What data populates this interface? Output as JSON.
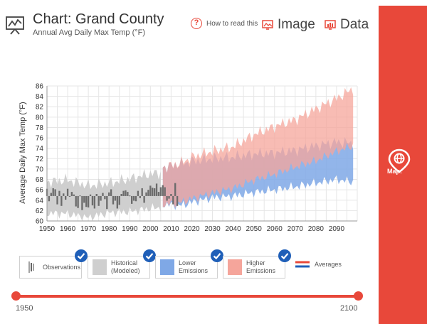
{
  "header": {
    "title": "Chart: Grand County",
    "subtitle": "Annual Avg Daily Max Temp (°F)",
    "help_label": "How to read this",
    "tab_image": "Image",
    "tab_data": "Data"
  },
  "sidebar": {
    "map_label": "Map:"
  },
  "legend": {
    "observations": "Observations",
    "historical_1": "Historical",
    "historical_2": "(Modeled)",
    "lower_1": "Lower",
    "lower_2": "Emissions",
    "higher_1": "Higher",
    "higher_2": "Emissions",
    "averages": "Averages"
  },
  "slider": {
    "start": "1950",
    "end": "2100"
  },
  "colors": {
    "accent": "#e8483a",
    "historical_band": "#cfcfcf",
    "lower_band": "#7fa8e6",
    "higher_band": "#f5a59b",
    "observations": "#6b6b6b",
    "check": "#1f5fb8"
  },
  "chart_data": {
    "type": "area",
    "ylabel": "Average Daily Max Temp (°F)",
    "xlabel": "",
    "xlim": [
      1950,
      2100
    ],
    "ylim": [
      60,
      86
    ],
    "x_ticks": [
      1950,
      1960,
      1970,
      1980,
      1990,
      2000,
      2010,
      2020,
      2030,
      2040,
      2050,
      2060,
      2070,
      2080,
      2090
    ],
    "y_ticks": [
      60,
      62,
      64,
      66,
      68,
      70,
      72,
      74,
      76,
      78,
      80,
      82,
      84,
      86
    ],
    "baseline": 64.8,
    "grid": true,
    "legend_position": "bottom",
    "series": [
      {
        "key": "historical",
        "x": [
          1950,
          1960,
          1970,
          1980,
          1990,
          2000,
          2005
        ],
        "low": [
          61.5,
          61.4,
          60.6,
          61.6,
          61.8,
          62.4,
          62.6
        ],
        "high": [
          67.5,
          67.9,
          66.8,
          67.3,
          68.1,
          69.1,
          69.3
        ]
      },
      {
        "key": "lower",
        "x": [
          2006,
          2015,
          2020,
          2030,
          2040,
          2050,
          2060,
          2070,
          2080,
          2090,
          2098
        ],
        "low": [
          63.2,
          63.0,
          63.6,
          64.5,
          64.8,
          65.5,
          66.0,
          66.6,
          67.3,
          68.0,
          67.5
        ],
        "high": [
          70.3,
          71.0,
          71.5,
          72.0,
          72.3,
          72.9,
          73.1,
          73.6,
          74.5,
          75.2,
          75.0
        ]
      },
      {
        "key": "higher",
        "x": [
          2006,
          2015,
          2020,
          2030,
          2040,
          2050,
          2060,
          2070,
          2080,
          2090,
          2098
        ],
        "low": [
          63.2,
          63.6,
          64.3,
          65.4,
          66.3,
          67.9,
          69.0,
          70.4,
          71.6,
          73.4,
          74.5
        ],
        "high": [
          70.3,
          71.2,
          72.3,
          73.4,
          74.3,
          76.6,
          78.2,
          79.5,
          81.6,
          83.6,
          85.5
        ]
      }
    ],
    "observations": {
      "years": [
        1950,
        1951,
        1952,
        1953,
        1954,
        1955,
        1956,
        1957,
        1958,
        1959,
        1960,
        1961,
        1962,
        1963,
        1964,
        1965,
        1966,
        1967,
        1968,
        1969,
        1970,
        1971,
        1972,
        1973,
        1974,
        1975,
        1976,
        1977,
        1978,
        1979,
        1980,
        1981,
        1982,
        1983,
        1984,
        1985,
        1986,
        1987,
        1988,
        1989,
        1990,
        1991,
        1992,
        1993,
        1994,
        1995,
        1996,
        1997,
        1998,
        1999,
        2000,
        2001,
        2002,
        2003,
        2004,
        2005,
        2006,
        2007,
        2008,
        2009,
        2010,
        2011,
        2012,
        2013
      ],
      "values": [
        66.2,
        63.8,
        65.4,
        66.3,
        66.1,
        63.2,
        65.8,
        62.9,
        65.3,
        64.1,
        66.2,
        64.7,
        65.6,
        65.1,
        62.8,
        62.5,
        64.9,
        62.1,
        63.5,
        62.7,
        62.6,
        65.1,
        63.0,
        62.4,
        65.2,
        62.9,
        63.9,
        65.4,
        64.2,
        62.3,
        65.5,
        66.1,
        63.2,
        63.9,
        62.4,
        63.1,
        65.2,
        65.8,
        65.9,
        65.6,
        64.9,
        63.3,
        63.9,
        63.8,
        65.8,
        64.4,
        66.3,
        63.5,
        65.5,
        66.0,
        66.8,
        66.4,
        66.3,
        67.2,
        65.6,
        66.5,
        66.9,
        66.5,
        63.9,
        64.3,
        65.2,
        63.2,
        67.3,
        62.9
      ]
    }
  }
}
